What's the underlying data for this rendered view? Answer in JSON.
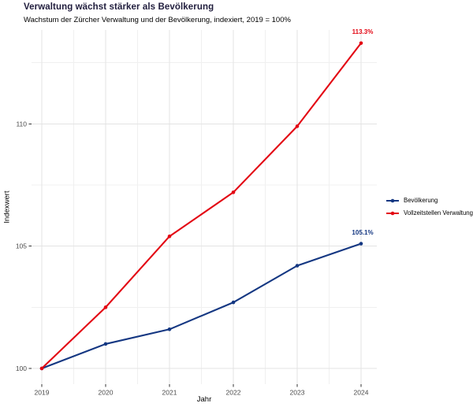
{
  "chart_data": {
    "type": "line",
    "title": "Verwaltung wächst stärker als Bevölkerung",
    "subtitle": "Wachstum der Zürcher Verwaltung und der Bevölkerung, indexiert, 2019 = 100%",
    "xlabel": "Jahr",
    "ylabel": "Indexwert",
    "x": [
      2019,
      2020,
      2021,
      2022,
      2023,
      2024
    ],
    "x_tick_labels": [
      "2019",
      "2020",
      "2021",
      "2022",
      "2023",
      "2024"
    ],
    "y_ticks": [
      100,
      105,
      110
    ],
    "ylim": [
      99.4,
      113.8
    ],
    "grid": true,
    "legend_position": "right",
    "series": [
      {
        "name": "Bevölkerung",
        "color": "#143782",
        "values": [
          100,
          101.0,
          101.6,
          102.7,
          104.2,
          105.1
        ],
        "end_label": "105.1%"
      },
      {
        "name": "Vollzeitstellen Verwaltung",
        "color": "#e30613",
        "values": [
          100,
          102.5,
          105.4,
          107.2,
          109.9,
          113.3
        ],
        "end_label": "113.3%"
      }
    ],
    "colors": {
      "title_text": "#201d3d",
      "tick_label_text": "#4a4a4a",
      "major_grid": "#e3e3e3",
      "minor_grid": "#f0f0f0",
      "axis_tick": "#333333"
    }
  }
}
